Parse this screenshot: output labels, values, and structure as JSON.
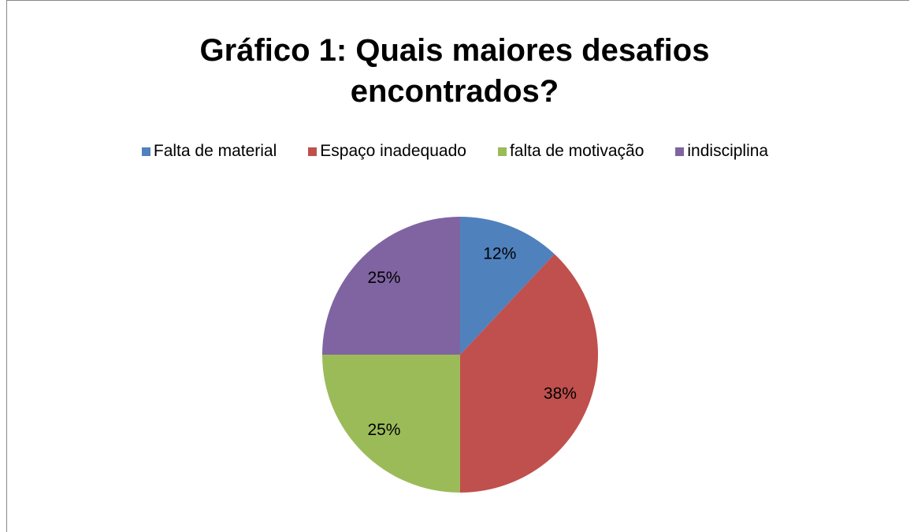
{
  "chart_data": {
    "type": "pie",
    "title": "Gráfico 1: Quais maiores desafios encontrados?",
    "categories": [
      "Falta de material",
      "Espaço inadequado",
      "falta de motivação",
      "indisciplina"
    ],
    "values": [
      12,
      38,
      25,
      25
    ],
    "value_labels": [
      "12%",
      "38%",
      "25%",
      "25%"
    ],
    "colors": [
      "#4f81bd",
      "#c0504d",
      "#9bbb59",
      "#8064a2"
    ],
    "legend": "top"
  }
}
